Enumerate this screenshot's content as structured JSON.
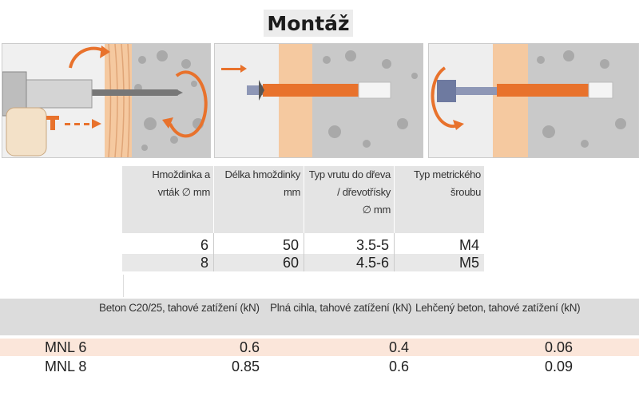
{
  "page": {
    "title": "Montáž"
  },
  "colors": {
    "accent_orange": "#e8722c",
    "wood": "#f5c9a0",
    "concrete": "#c8c8c8",
    "header_gray": "#e4e4e4",
    "row_peach": "#fbe6da"
  },
  "illustrations": [
    {
      "name": "drilling-step"
    },
    {
      "name": "insert-anchor-step"
    },
    {
      "name": "tighten-screw-step"
    }
  ],
  "table1": {
    "headers": [
      [
        "Hmoždinka a",
        "vrták ∅ mm"
      ],
      [
        "Délka hmoždinky",
        "mm"
      ],
      [
        "Typ vrutu do dřeva",
        "/ dřevotřísky",
        "∅ mm"
      ],
      [
        "Typ metrického",
        "šroubu"
      ]
    ],
    "rows": [
      [
        "6",
        "50",
        "3.5-5",
        "M4"
      ],
      [
        "8",
        "60",
        "4.5-6",
        "M5"
      ]
    ]
  },
  "table2": {
    "headers": [
      "Beton C20/25, tahové zatížení (kN)",
      "Plná cihla, tahové zatížení (kN)",
      "Lehčený beton, tahové zatížení (kN)"
    ],
    "rows": [
      {
        "label": "MNL 6",
        "values": [
          "0.6",
          "0.4",
          "0.06"
        ]
      },
      {
        "label": "MNL 8",
        "values": [
          "0.85",
          "0.6",
          "0.09"
        ]
      }
    ]
  }
}
